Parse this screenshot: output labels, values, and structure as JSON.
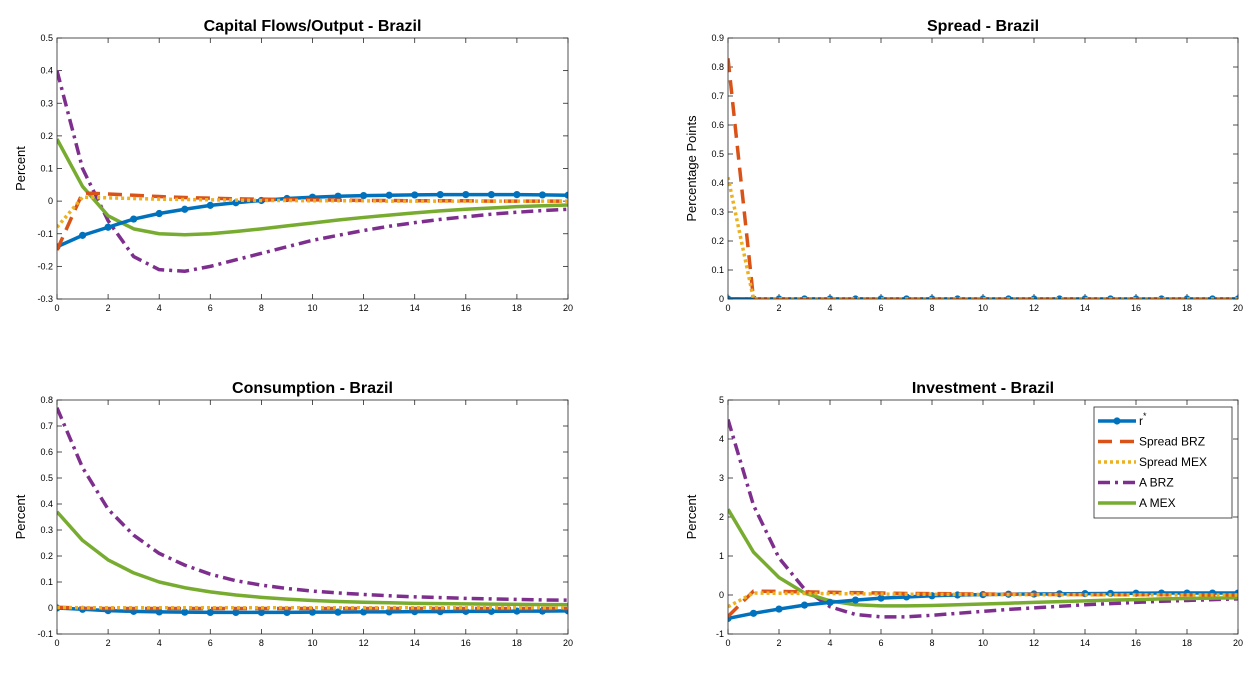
{
  "chart_data": [
    {
      "type": "line",
      "title": "Capital Flows/Output - Brazil",
      "xlabel": "",
      "ylabel": "Percent",
      "xlim": [
        0,
        20
      ],
      "ylim": [
        -0.3,
        0.5
      ],
      "xticks": [
        "0",
        "2",
        "4",
        "6",
        "8",
        "10",
        "12",
        "14",
        "16",
        "18",
        "20"
      ],
      "yticks": [
        "-0.3",
        "-0.2",
        "-0.1",
        "0",
        "0.1",
        "0.2",
        "0.3",
        "0.4",
        "0.5"
      ],
      "x": [
        0,
        1,
        2,
        3,
        4,
        5,
        6,
        7,
        8,
        9,
        10,
        11,
        12,
        13,
        14,
        15,
        16,
        17,
        18,
        19,
        20
      ],
      "series": [
        {
          "key": "rstar",
          "values": [
            -0.14,
            -0.105,
            -0.08,
            -0.055,
            -0.038,
            -0.025,
            -0.013,
            -0.005,
            0.002,
            0.008,
            0.012,
            0.015,
            0.017,
            0.018,
            0.019,
            0.02,
            0.02,
            0.02,
            0.02,
            0.019,
            0.018
          ]
        },
        {
          "key": "spread_brz",
          "values": [
            -0.15,
            0.025,
            0.022,
            0.018,
            0.014,
            0.011,
            0.009,
            0.007,
            0.006,
            0.005,
            0.004,
            0.003,
            0.002,
            0.002,
            0.001,
            0.001,
            0.001,
            0,
            0,
            0,
            0
          ]
        },
        {
          "key": "spread_mex",
          "values": [
            -0.08,
            0.012,
            0.01,
            0.008,
            0.006,
            0.005,
            0.004,
            0.003,
            0.002,
            0.002,
            0.001,
            0.001,
            0.001,
            0,
            0,
            0,
            0,
            0,
            0,
            0,
            0
          ]
        },
        {
          "key": "a_brz",
          "values": [
            0.4,
            0.1,
            -0.06,
            -0.17,
            -0.21,
            -0.215,
            -0.2,
            -0.18,
            -0.16,
            -0.14,
            -0.12,
            -0.105,
            -0.09,
            -0.077,
            -0.066,
            -0.056,
            -0.048,
            -0.04,
            -0.034,
            -0.029,
            -0.025
          ]
        },
        {
          "key": "a_mex",
          "values": [
            0.19,
            0.045,
            -0.045,
            -0.085,
            -0.1,
            -0.103,
            -0.1,
            -0.093,
            -0.085,
            -0.076,
            -0.067,
            -0.058,
            -0.05,
            -0.043,
            -0.036,
            -0.03,
            -0.025,
            -0.021,
            -0.017,
            -0.014,
            -0.012
          ]
        }
      ]
    },
    {
      "type": "line",
      "title": "Spread - Brazil",
      "xlabel": "",
      "ylabel": "Percentage Points",
      "xlim": [
        0,
        20
      ],
      "ylim": [
        0,
        0.9
      ],
      "xticks": [
        "0",
        "2",
        "4",
        "6",
        "8",
        "10",
        "12",
        "14",
        "16",
        "18",
        "20"
      ],
      "yticks": [
        "0",
        "0.1",
        "0.2",
        "0.3",
        "0.4",
        "0.5",
        "0.6",
        "0.7",
        "0.8",
        "0.9"
      ],
      "x": [
        0,
        1,
        2,
        3,
        4,
        5,
        6,
        7,
        8,
        9,
        10,
        11,
        12,
        13,
        14,
        15,
        16,
        17,
        18,
        19,
        20
      ],
      "series": [
        {
          "key": "rstar",
          "values": [
            0,
            0,
            0,
            0,
            0,
            0,
            0,
            0,
            0,
            0,
            0,
            0,
            0,
            0,
            0,
            0,
            0,
            0,
            0,
            0,
            0
          ]
        },
        {
          "key": "spread_brz",
          "values": [
            0.83,
            0,
            0,
            0,
            0,
            0,
            0,
            0,
            0,
            0,
            0,
            0,
            0,
            0,
            0,
            0,
            0,
            0,
            0,
            0,
            0
          ]
        },
        {
          "key": "spread_mex",
          "values": [
            0.42,
            0,
            0,
            0,
            0,
            0,
            0,
            0,
            0,
            0,
            0,
            0,
            0,
            0,
            0,
            0,
            0,
            0,
            0,
            0,
            0
          ]
        },
        {
          "key": "a_brz",
          "values": [
            0,
            0,
            0,
            0,
            0,
            0,
            0,
            0,
            0,
            0,
            0,
            0,
            0,
            0,
            0,
            0,
            0,
            0,
            0,
            0,
            0
          ]
        },
        {
          "key": "a_mex",
          "values": [
            0,
            0,
            0,
            0,
            0,
            0,
            0,
            0,
            0,
            0,
            0,
            0,
            0,
            0,
            0,
            0,
            0,
            0,
            0,
            0,
            0
          ]
        }
      ]
    },
    {
      "type": "line",
      "title": "Consumption - Brazil",
      "xlabel": "",
      "ylabel": "Percent",
      "xlim": [
        0,
        20
      ],
      "ylim": [
        -0.1,
        0.8
      ],
      "xticks": [
        "0",
        "2",
        "4",
        "6",
        "8",
        "10",
        "12",
        "14",
        "16",
        "18",
        "20"
      ],
      "yticks": [
        "-0.1",
        "0",
        "0.1",
        "0.2",
        "0.3",
        "0.4",
        "0.5",
        "0.6",
        "0.7",
        "0.8"
      ],
      "x": [
        0,
        1,
        2,
        3,
        4,
        5,
        6,
        7,
        8,
        9,
        10,
        11,
        12,
        13,
        14,
        15,
        16,
        17,
        18,
        19,
        20
      ],
      "series": [
        {
          "key": "rstar",
          "values": [
            0,
            -0.005,
            -0.01,
            -0.013,
            -0.015,
            -0.016,
            -0.017,
            -0.017,
            -0.017,
            -0.017,
            -0.016,
            -0.016,
            -0.015,
            -0.015,
            -0.014,
            -0.014,
            -0.013,
            -0.013,
            -0.012,
            -0.012,
            -0.011
          ]
        },
        {
          "key": "spread_brz",
          "values": [
            0.003,
            -0.001,
            -0.002,
            -0.002,
            -0.002,
            -0.002,
            -0.002,
            -0.002,
            -0.002,
            -0.002,
            -0.002,
            -0.002,
            -0.002,
            -0.002,
            -0.002,
            -0.002,
            -0.002,
            -0.002,
            -0.002,
            -0.002,
            -0.002
          ]
        },
        {
          "key": "spread_mex",
          "values": [
            0.002,
            0.001,
            0.001,
            0.001,
            0.001,
            0.001,
            0.001,
            0.001,
            0.001,
            0.001,
            0.001,
            0.001,
            0.001,
            0.001,
            0.001,
            0.001,
            0.001,
            0.001,
            0.001,
            0.001,
            0.001
          ]
        },
        {
          "key": "a_brz",
          "values": [
            0.77,
            0.54,
            0.38,
            0.28,
            0.21,
            0.165,
            0.13,
            0.105,
            0.088,
            0.075,
            0.065,
            0.058,
            0.052,
            0.047,
            0.043,
            0.04,
            0.037,
            0.035,
            0.033,
            0.031,
            0.03
          ]
        },
        {
          "key": "a_mex",
          "values": [
            0.37,
            0.26,
            0.185,
            0.135,
            0.1,
            0.078,
            0.062,
            0.05,
            0.041,
            0.034,
            0.029,
            0.025,
            0.022,
            0.02,
            0.018,
            0.017,
            0.016,
            0.015,
            0.014,
            0.013,
            0.013
          ]
        }
      ]
    },
    {
      "type": "line",
      "title": "Investment - Brazil",
      "xlabel": "",
      "ylabel": "Percent",
      "xlim": [
        0,
        20
      ],
      "ylim": [
        -1,
        5
      ],
      "xticks": [
        "0",
        "2",
        "4",
        "6",
        "8",
        "10",
        "12",
        "14",
        "16",
        "18",
        "20"
      ],
      "yticks": [
        "-1",
        "0",
        "1",
        "2",
        "3",
        "4",
        "5"
      ],
      "x": [
        0,
        1,
        2,
        3,
        4,
        5,
        6,
        7,
        8,
        9,
        10,
        11,
        12,
        13,
        14,
        15,
        16,
        17,
        18,
        19,
        20
      ],
      "legend_position": "top-right",
      "series": [
        {
          "key": "rstar",
          "values": [
            -0.6,
            -0.47,
            -0.36,
            -0.26,
            -0.19,
            -0.13,
            -0.08,
            -0.05,
            -0.02,
            0,
            0.01,
            0.02,
            0.025,
            0.03,
            0.035,
            0.04,
            0.045,
            0.05,
            0.05,
            0.05,
            0.05
          ]
        },
        {
          "key": "spread_brz",
          "values": [
            -0.55,
            0.1,
            0.09,
            0.08,
            0.07,
            0.06,
            0.05,
            0.04,
            0.035,
            0.03,
            0.025,
            0.02,
            0.015,
            0.012,
            0.01,
            0.008,
            0.006,
            0.005,
            0.004,
            0.003,
            0.002
          ]
        },
        {
          "key": "spread_mex",
          "values": [
            -0.3,
            0.05,
            0.045,
            0.04,
            0.035,
            0.03,
            0.025,
            0.02,
            0.018,
            0.015,
            0.012,
            0.01,
            0.008,
            0.006,
            0.005,
            0.004,
            0.003,
            0.002,
            0.002,
            0.001,
            0.001
          ]
        },
        {
          "key": "a_brz",
          "values": [
            4.5,
            2.3,
            0.95,
            0.15,
            -0.3,
            -0.5,
            -0.56,
            -0.56,
            -0.52,
            -0.47,
            -0.42,
            -0.37,
            -0.33,
            -0.29,
            -0.25,
            -0.22,
            -0.19,
            -0.16,
            -0.14,
            -0.12,
            -0.1
          ]
        },
        {
          "key": "a_mex",
          "values": [
            2.2,
            1.1,
            0.45,
            0.05,
            -0.15,
            -0.25,
            -0.28,
            -0.28,
            -0.27,
            -0.25,
            -0.23,
            -0.21,
            -0.19,
            -0.17,
            -0.15,
            -0.13,
            -0.12,
            -0.1,
            -0.09,
            -0.08,
            -0.07
          ]
        }
      ]
    }
  ],
  "legend": [
    {
      "key": "rstar",
      "label": "r",
      "superscript": "*"
    },
    {
      "key": "spread_brz",
      "label": "Spread BRZ",
      "superscript": ""
    },
    {
      "key": "spread_mex",
      "label": "Spread MEX",
      "superscript": ""
    },
    {
      "key": "a_brz",
      "label": "A BRZ",
      "superscript": ""
    },
    {
      "key": "a_mex",
      "label": "A MEX",
      "superscript": ""
    }
  ],
  "series_styles": {
    "rstar": {
      "color": "#0072BD",
      "dash": "",
      "width": 3.5,
      "markers": true
    },
    "spread_brz": {
      "color": "#D95319",
      "dash": "14 8",
      "width": 3.5,
      "markers": false
    },
    "spread_mex": {
      "color": "#EDB120",
      "dash": "3 3",
      "width": 3.5,
      "markers": false
    },
    "a_brz": {
      "color": "#7E2F8E",
      "dash": "12 5 3 5",
      "width": 3.5,
      "markers": false
    },
    "a_mex": {
      "color": "#77AC30",
      "dash": "",
      "width": 3.5,
      "markers": false
    }
  }
}
